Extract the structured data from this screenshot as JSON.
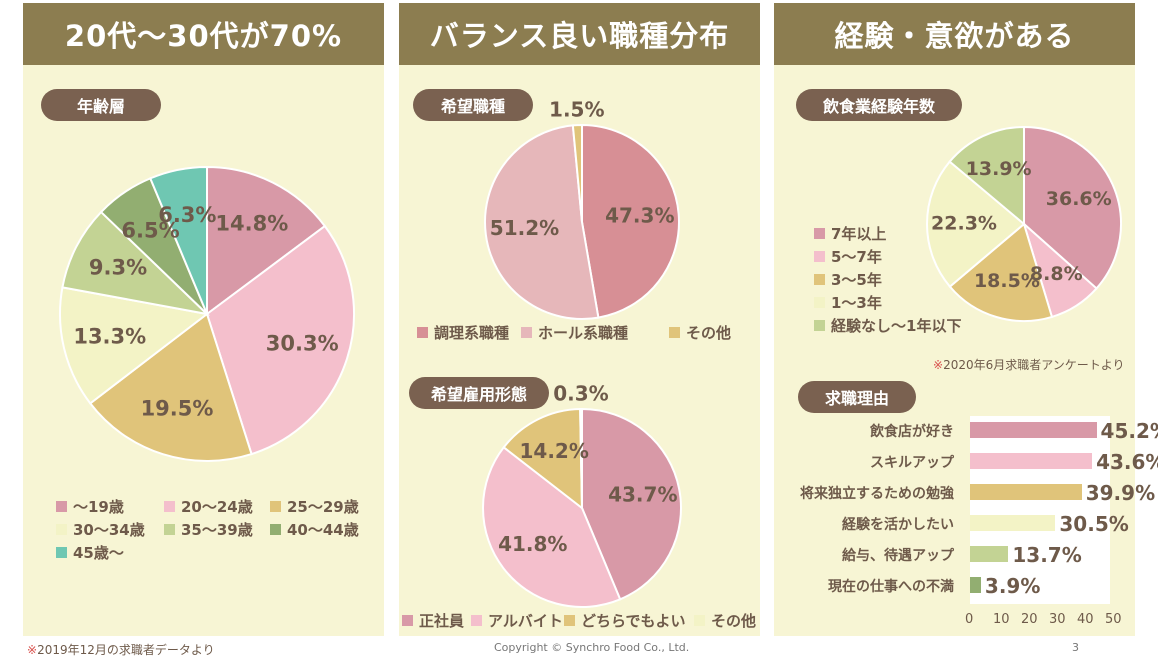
{
  "panels": {
    "age": {
      "header": "20代～30代が70%",
      "pill": "年齢層"
    },
    "job": {
      "header": "バランス良い職種分布",
      "pill_type": "希望職種",
      "pill_employment": "希望雇用形態"
    },
    "exp": {
      "header": "経験・意欲がある",
      "pill_years": "飲食業経験年数",
      "pill_reasons": "求職理由",
      "survey_note_mark": "※",
      "survey_note": "2020年6月求職者アンケートより"
    }
  },
  "footer": {
    "note_mark": "※",
    "note": "2019年12月の求職者データより",
    "copyright": "Copyright © Synchro Food Co., Ltd.",
    "page": "3"
  },
  "chart_data": [
    {
      "id": "age",
      "type": "pie",
      "title": "年齢層",
      "labels": [
        "～19歳",
        "20～24歳",
        "25～29歳",
        "30～34歳",
        "35～39歳",
        "40～44歳",
        "45歳～"
      ],
      "values": [
        14.8,
        30.3,
        19.5,
        13.3,
        9.3,
        6.5,
        6.3
      ],
      "value_labels": [
        "14.8%",
        "30.3%",
        "19.5%",
        "13.3%",
        "9.3%",
        "6.5%",
        "6.3%"
      ],
      "colors": [
        "#d899a7",
        "#f4bfcc",
        "#e0c47a",
        "#f3f3c6",
        "#c3d394",
        "#92ae71",
        "#6fc7b2"
      ],
      "legend": "bottom"
    },
    {
      "id": "job_type",
      "type": "pie",
      "title": "希望職種",
      "labels": [
        "調理系職種",
        "ホール系職種",
        "その他"
      ],
      "values": [
        47.3,
        51.2,
        1.5
      ],
      "value_labels": [
        "47.3%",
        "51.2%",
        "1.5%"
      ],
      "colors": [
        "#d78f95",
        "#e6b7ba",
        "#e0c47a"
      ],
      "legend": "bottom"
    },
    {
      "id": "employment",
      "type": "pie",
      "title": "希望雇用形態",
      "labels": [
        "正社員",
        "アルバイト",
        "どちらでもよい",
        "その他"
      ],
      "values": [
        43.7,
        41.8,
        14.2,
        0.3
      ],
      "value_labels": [
        "43.7%",
        "41.8%",
        "14.2%",
        "0.3%"
      ],
      "colors": [
        "#d899a7",
        "#f4bfcc",
        "#e0c47a",
        "#f3f3c6"
      ],
      "legend": "bottom"
    },
    {
      "id": "experience",
      "type": "pie",
      "title": "飲食業経験年数",
      "labels": [
        "7年以上",
        "5～7年",
        "3～5年",
        "1～3年",
        "経験なし～1年以下"
      ],
      "values": [
        36.6,
        8.8,
        18.5,
        22.3,
        13.9
      ],
      "value_labels": [
        "36.6%",
        "8.8%",
        "18.5%",
        "22.3%",
        "13.9%"
      ],
      "colors": [
        "#d899a7",
        "#f4bfcc",
        "#e0c47a",
        "#f3f3c6",
        "#c3d394"
      ],
      "legend": "left"
    },
    {
      "id": "reasons",
      "type": "bar",
      "orientation": "horizontal",
      "title": "求職理由",
      "categories": [
        "飲食店が好き",
        "スキルアップ",
        "将来独立するための勉強",
        "経験を活かしたい",
        "給与、待遇アップ",
        "現在の仕事への不満"
      ],
      "values": [
        45.2,
        43.6,
        39.9,
        30.5,
        13.7,
        3.9
      ],
      "value_labels": [
        "45.2%",
        "43.6%",
        "39.9%",
        "30.5%",
        "13.7%",
        "3.9%"
      ],
      "colors": [
        "#d899a7",
        "#f4bfcc",
        "#e0c47a",
        "#f3f3c6",
        "#c3d394",
        "#92ae71"
      ],
      "xlim": [
        0,
        50
      ],
      "xticks": [
        "0",
        "10",
        "20",
        "30",
        "40",
        "50"
      ]
    }
  ]
}
